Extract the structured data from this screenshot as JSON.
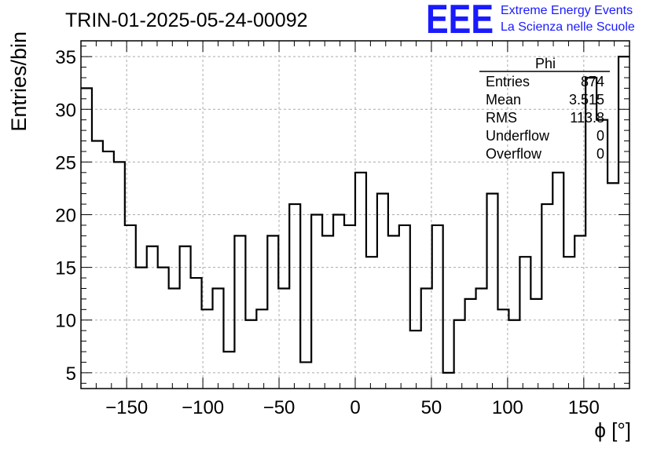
{
  "chart_data": {
    "type": "histogram",
    "title": "TRIN-01-2025-05-24-00092",
    "xlabel": "ϕ [°]",
    "ylabel": "Entries/bin",
    "xlim": [
      -180,
      180
    ],
    "ylim": [
      3.5,
      36.5
    ],
    "bin_width": 7.2,
    "grid": true,
    "x_ticks": [
      -150,
      -100,
      -50,
      0,
      50,
      100,
      150
    ],
    "x_tick_labels": [
      "−150",
      "−100",
      "−50",
      "0",
      "50",
      "100",
      "150"
    ],
    "y_ticks": [
      5,
      10,
      15,
      20,
      25,
      30,
      35
    ],
    "y_tick_labels": [
      "5",
      "10",
      "15",
      "20",
      "25",
      "30",
      "35"
    ],
    "values": [
      32,
      27,
      26,
      25,
      19,
      15,
      17,
      15,
      13,
      17,
      14,
      11,
      13,
      7,
      18,
      10,
      11,
      18,
      13,
      21,
      6,
      20,
      18,
      20,
      19,
      24,
      16,
      22,
      18,
      19,
      9,
      13,
      19,
      5,
      10,
      12,
      13,
      22,
      11,
      10,
      16,
      12,
      21,
      24,
      16,
      18,
      33,
      29,
      23,
      35
    ],
    "stats_box": {
      "title": "Phi",
      "rows": [
        {
          "label": "Entries",
          "value": "874"
        },
        {
          "label": "Mean",
          "value": "3.515"
        },
        {
          "label": "RMS",
          "value": "113.8"
        },
        {
          "label": "Underflow",
          "value": "0"
        },
        {
          "label": "Overflow",
          "value": "0"
        }
      ]
    }
  },
  "branding": {
    "logo_text": "EEE",
    "line1": "Extreme Energy Events",
    "line2": "La Scienza nelle Scuole",
    "color": "#1a1aff"
  }
}
